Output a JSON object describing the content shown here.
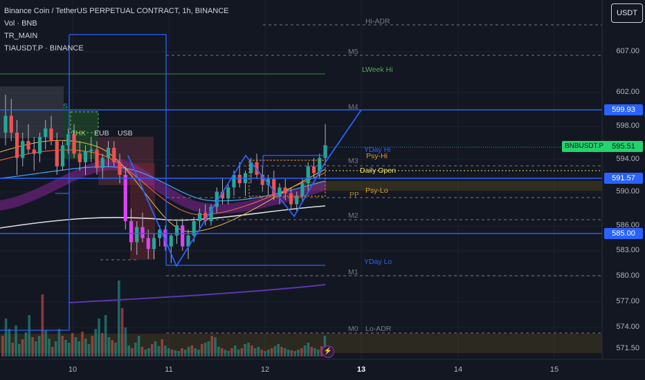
{
  "header": {
    "title": "Binance Coin / TetherUS PERPETUAL CONTRACT, 1h, BINANCE",
    "indicators": [
      "Vol · BNB",
      "TR_MAIN",
      "TIAUSDT.P · BINANCE"
    ]
  },
  "currency_button": "USDT",
  "price_axis": [
    "607.00",
    "602.00",
    "598.00",
    "594.00",
    "590.00",
    "586.00",
    "583.00",
    "580.00",
    "577.00",
    "574.00",
    "571.50"
  ],
  "badges": {
    "ticker": "BNBUSDT.P",
    "current": "595.51",
    "level_upper": "599.93",
    "level_mid": "591.57",
    "level_lower": "585.00"
  },
  "time_axis": [
    "10",
    "11",
    "12",
    "13",
    "14",
    "15"
  ],
  "levels": {
    "hi_adr": "Hi-ADR",
    "m5": "M5",
    "lweek_hi": "LWeek Hi",
    "m4": "M4",
    "yday_hi": "YDay Hi",
    "psy_hi": "Psy-Hi",
    "m3": "M3",
    "daily_open": "Daily Open",
    "pp": "PP",
    "psy_lo": "Psy-Lo",
    "m2": "M2",
    "yday_lo": "YDay Lo",
    "m1": "M1",
    "m0": "M0",
    "lo_adr": "Lo-ADR"
  },
  "session_labels": {
    "s": "S",
    "thk": "THK",
    "eub": "EUB",
    "usb": "USB"
  },
  "colors": {
    "background": "#131722",
    "up": "#26a69a",
    "down": "#ef5350",
    "blue_line": "#2962ff",
    "badge_blue": "#2962ff",
    "ticker_green": "#22d46c"
  },
  "chart_data": {
    "type": "candlestick",
    "symbol": "BNBUSDT.P",
    "interval": "1h",
    "ylim": [
      570.5,
      610
    ],
    "y_ticks": [
      607,
      602,
      598,
      594,
      590,
      586,
      583,
      580,
      577,
      574,
      571.5
    ],
    "x_ticks": [
      "10",
      "11",
      "12",
      "13",
      "14",
      "15"
    ],
    "last_price": 595.51,
    "horizontal_levels": [
      599.93,
      591.57,
      585.0
    ],
    "candles": [
      [
        597.0,
        601.5,
        595.5,
        599.0
      ],
      [
        599.0,
        601.0,
        596.0,
        597.0
      ],
      [
        597.0,
        598.5,
        592.0,
        594.0
      ],
      [
        594.0,
        597.0,
        593.0,
        596.0
      ],
      [
        596.0,
        598.0,
        594.5,
        595.0
      ],
      [
        595.0,
        596.5,
        592.5,
        594.5
      ],
      [
        594.5,
        597.0,
        593.5,
        596.5
      ],
      [
        596.5,
        598.5,
        595.0,
        597.5
      ],
      [
        597.5,
        599.0,
        595.5,
        596.0
      ],
      [
        596.0,
        597.0,
        592.0,
        593.0
      ],
      [
        593.0,
        596.0,
        592.5,
        595.5
      ],
      [
        595.5,
        597.5,
        594.5,
        596.8
      ],
      [
        596.8,
        598.0,
        594.0,
        594.5
      ],
      [
        594.5,
        596.0,
        592.5,
        593.5
      ],
      [
        593.5,
        595.5,
        592.0,
        594.8
      ],
      [
        594.8,
        596.5,
        593.5,
        595.0
      ],
      [
        595.0,
        596.0,
        592.0,
        592.8
      ],
      [
        592.8,
        594.5,
        591.5,
        594.0
      ],
      [
        594.0,
        596.0,
        593.0,
        595.2
      ],
      [
        595.2,
        596.0,
        593.0,
        593.5
      ],
      [
        593.5,
        594.5,
        591.0,
        592.0
      ],
      [
        592.0,
        593.0,
        585.5,
        586.5
      ],
      [
        586.5,
        588.0,
        583.0,
        584.0
      ],
      [
        584.0,
        586.5,
        582.5,
        585.8
      ],
      [
        585.8,
        587.5,
        584.0,
        584.5
      ],
      [
        584.5,
        585.5,
        582.0,
        583.2
      ],
      [
        583.2,
        585.0,
        582.0,
        584.5
      ],
      [
        584.5,
        586.0,
        583.5,
        585.5
      ],
      [
        585.5,
        586.0,
        583.0,
        583.5
      ],
      [
        583.5,
        585.0,
        581.5,
        584.8
      ],
      [
        584.8,
        586.5,
        583.8,
        586.0
      ],
      [
        586.0,
        586.8,
        583.0,
        583.5
      ],
      [
        583.5,
        585.5,
        582.0,
        584.8
      ],
      [
        584.8,
        587.0,
        584.0,
        586.5
      ],
      [
        586.5,
        588.0,
        585.5,
        587.5
      ],
      [
        587.5,
        588.5,
        586.0,
        586.5
      ],
      [
        586.5,
        588.5,
        586.0,
        588.2
      ],
      [
        588.2,
        590.5,
        587.5,
        590.0
      ],
      [
        590.0,
        591.5,
        588.5,
        589.2
      ],
      [
        589.2,
        591.0,
        588.5,
        590.5
      ],
      [
        590.5,
        592.5,
        589.5,
        592.0
      ],
      [
        592.0,
        593.5,
        590.5,
        591.0
      ],
      [
        591.0,
        592.5,
        589.5,
        592.2
      ],
      [
        592.2,
        594.0,
        591.0,
        593.5
      ],
      [
        593.5,
        594.5,
        591.5,
        592.0
      ],
      [
        592.0,
        593.0,
        590.0,
        590.8
      ],
      [
        590.8,
        592.0,
        589.5,
        591.5
      ],
      [
        591.5,
        592.5,
        589.0,
        589.5
      ],
      [
        589.5,
        591.0,
        588.5,
        590.5
      ],
      [
        590.5,
        591.5,
        589.0,
        589.8
      ],
      [
        589.8,
        590.5,
        588.0,
        588.5
      ],
      [
        588.5,
        590.0,
        587.5,
        589.5
      ],
      [
        589.5,
        591.5,
        588.8,
        591.0
      ],
      [
        591.0,
        593.5,
        590.0,
        593.0
      ],
      [
        593.0,
        594.0,
        591.5,
        592.2
      ],
      [
        592.2,
        594.5,
        591.5,
        594.0
      ],
      [
        594.0,
        598.0,
        593.5,
        595.5
      ]
    ]
  }
}
